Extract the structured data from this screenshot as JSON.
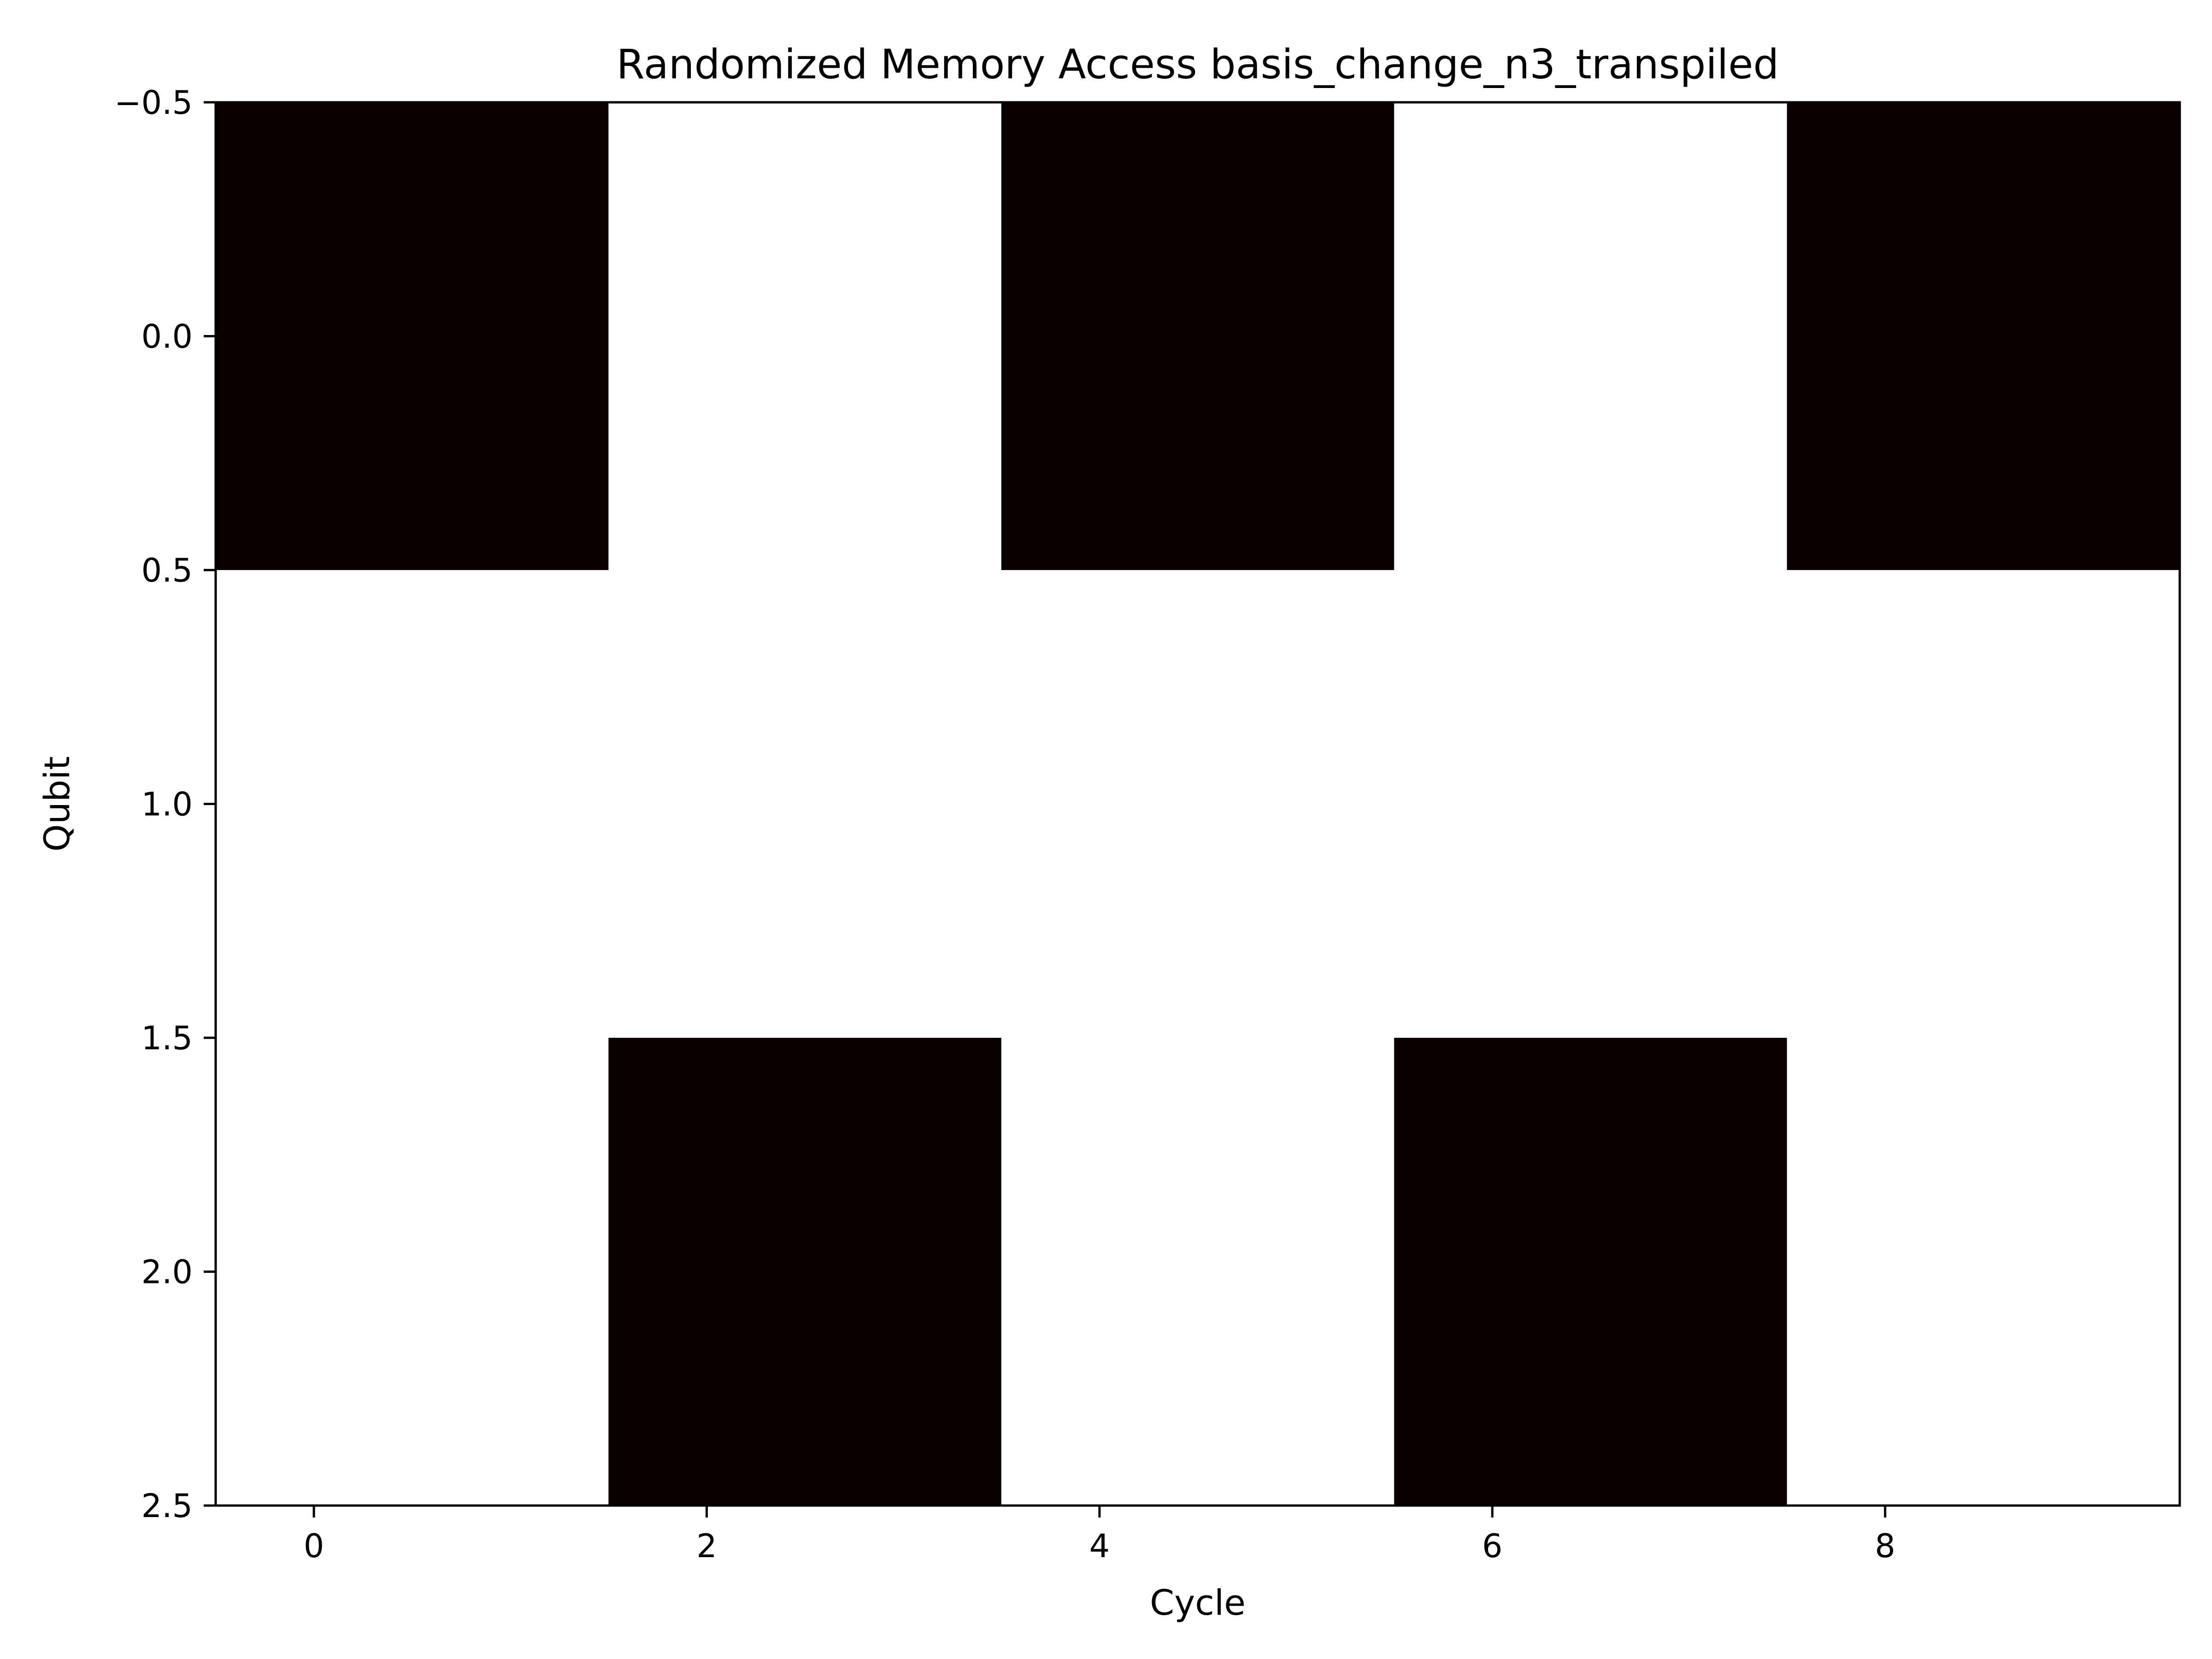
{
  "chart_data": {
    "type": "heatmap",
    "title": "Randomized Memory Access basis_change_n3_transpiled",
    "xlabel": "Cycle",
    "ylabel": "Qubit",
    "x_ticks": [
      "0",
      "2",
      "4",
      "6",
      "8"
    ],
    "y_ticks": [
      "−0.5",
      "0.0",
      "0.5",
      "1.0",
      "1.5",
      "2.0",
      "2.5"
    ],
    "xlim": [
      -0.5,
      9.5
    ],
    "ylim": [
      2.5,
      -0.5
    ],
    "rows": [
      "0",
      "1",
      "2"
    ],
    "columns": [
      "0",
      "1",
      "2",
      "3",
      "4",
      "5",
      "6",
      "7",
      "8",
      "9"
    ],
    "values": [
      [
        1,
        1,
        0,
        0,
        1,
        1,
        0,
        0,
        1,
        1
      ],
      [
        0,
        0,
        0,
        0,
        0,
        0,
        0,
        0,
        0,
        0
      ],
      [
        0,
        0,
        1,
        1,
        0,
        0,
        1,
        1,
        0,
        0
      ]
    ],
    "colormap": {
      "high": "#0b0000",
      "low": "#ffffff"
    },
    "grid": false,
    "colorbar": false
  }
}
